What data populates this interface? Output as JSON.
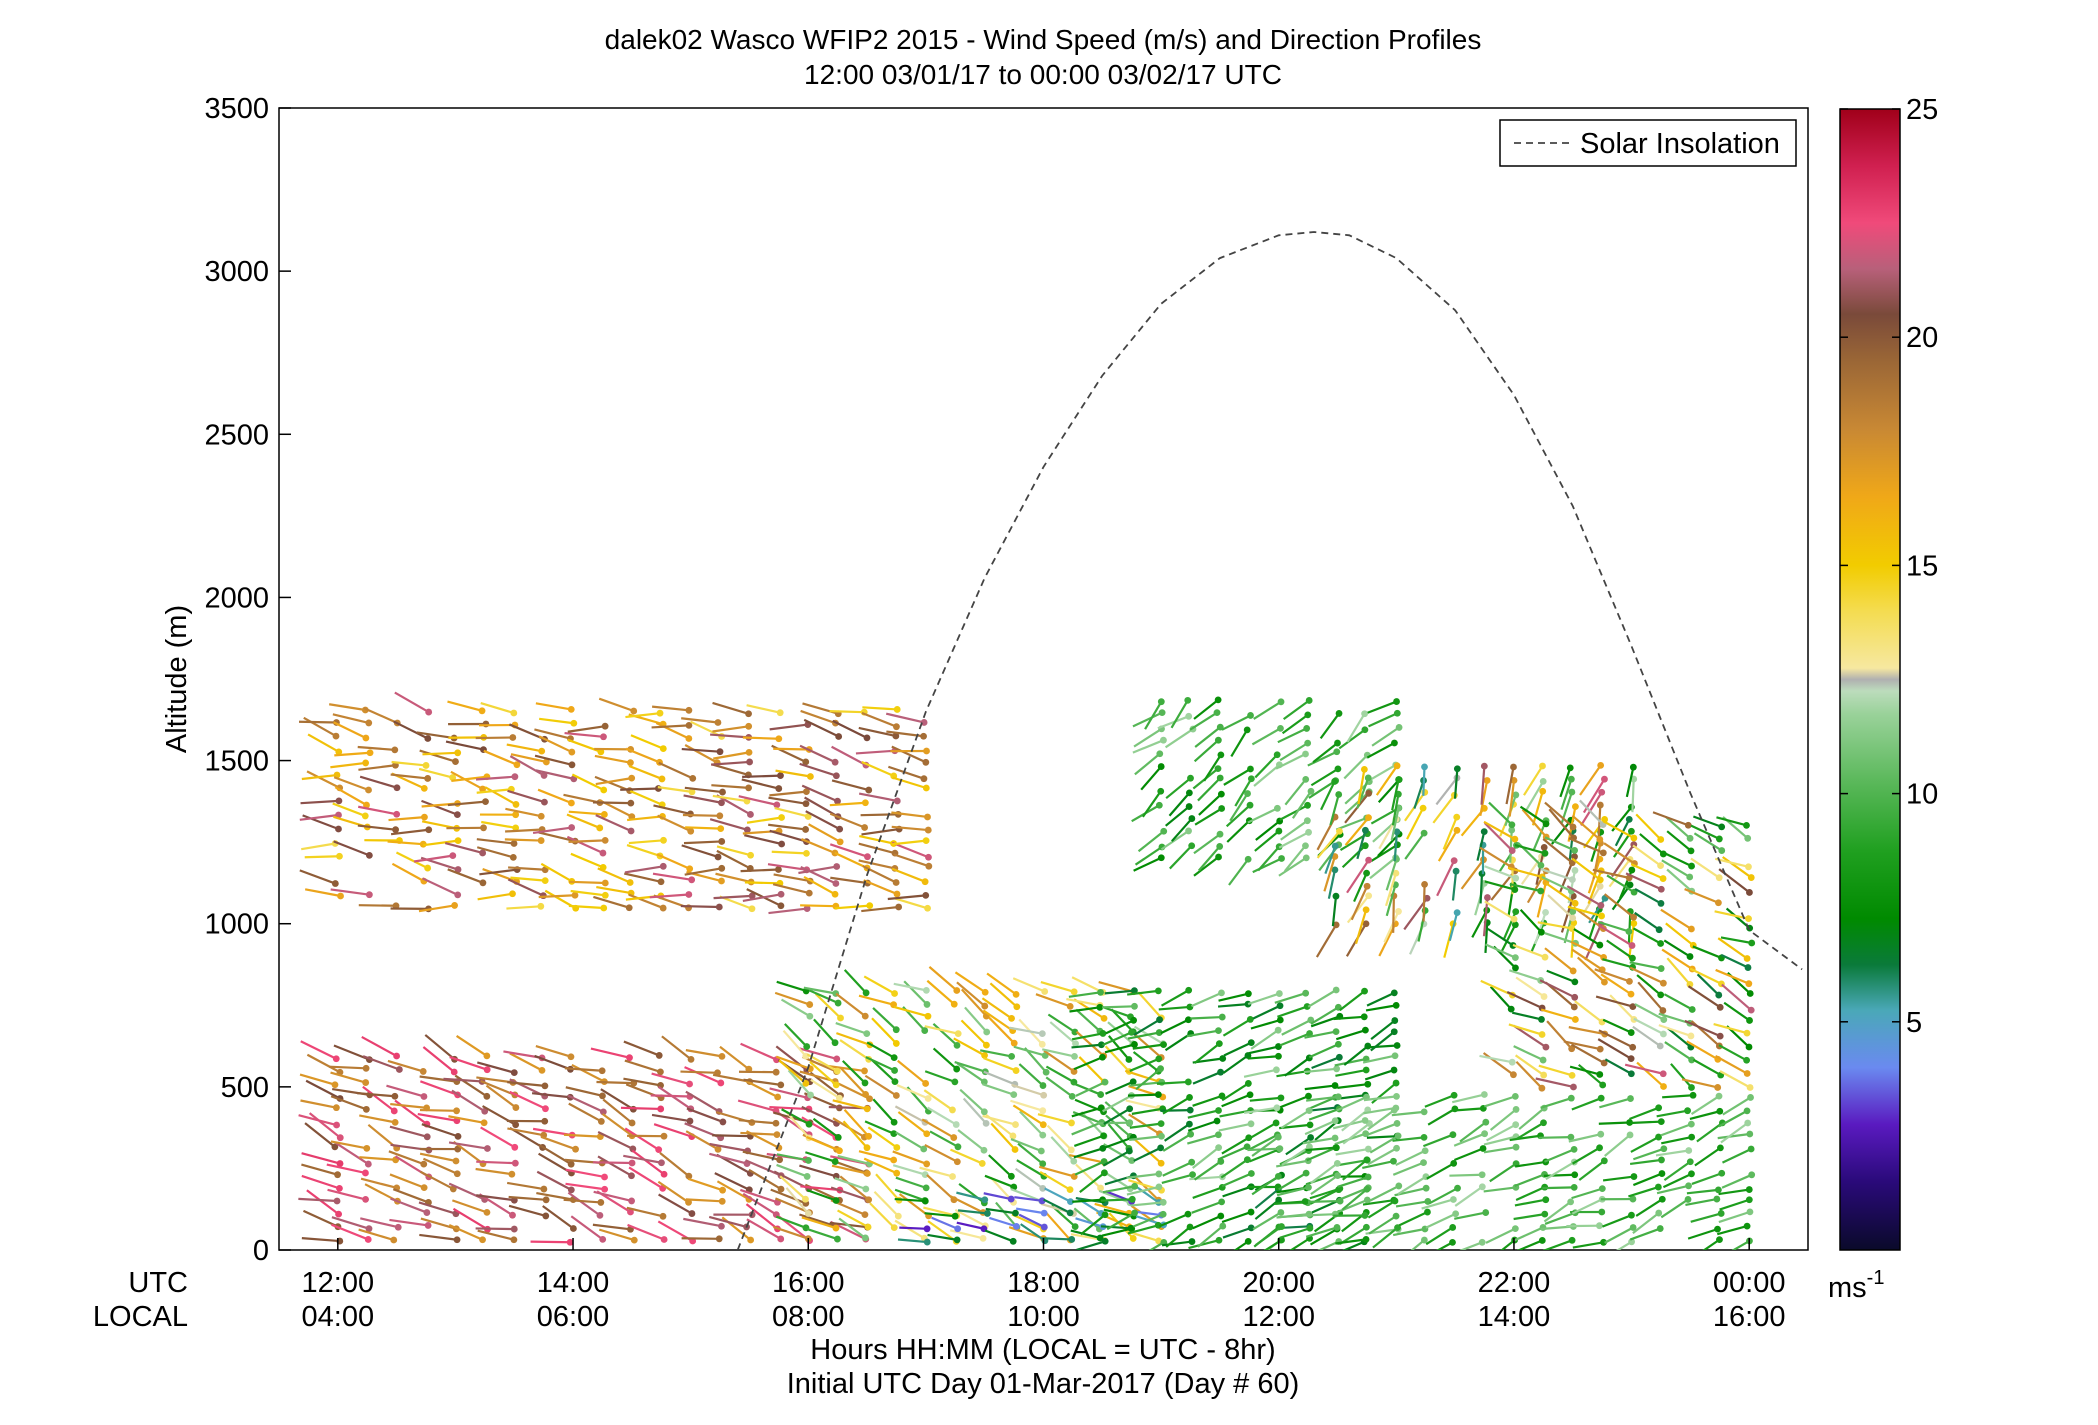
{
  "chart_data": {
    "type": "scatter",
    "title": "dalek02 Wasco WFIP2 2015 - Wind Speed (m/s) and Direction Profiles",
    "subtitle": "12:00 03/01/17 to 00:00 03/02/17  UTC",
    "ylabel": "Altitude (m)",
    "xlabel": "Hours HH:MM  (LOCAL = UTC - 8hr)",
    "footnote": "Initial UTC Day 01-Mar-2017 (Day # 60)",
    "row_labels": {
      "utc": "UTC",
      "local": "LOCAL"
    },
    "x_ticks_utc": [
      "12:00",
      "14:00",
      "16:00",
      "18:00",
      "20:00",
      "22:00",
      "00:00"
    ],
    "x_ticks_local": [
      "04:00",
      "06:00",
      "08:00",
      "10:00",
      "12:00",
      "14:00",
      "16:00"
    ],
    "x_tick_hours": [
      12,
      14,
      16,
      18,
      20,
      22,
      24
    ],
    "xlim_hours": [
      11.5,
      24.5
    ],
    "ylim": [
      0,
      3500
    ],
    "y_ticks": [
      0,
      500,
      1000,
      1500,
      2000,
      2500,
      3000,
      3500
    ],
    "grid": false,
    "legend": {
      "entries": [
        "Solar Insolation"
      ],
      "position": "top-right"
    },
    "colorbar": {
      "ticks": [
        5,
        10,
        15,
        20,
        25
      ],
      "range": [
        0,
        25
      ],
      "unit_base": "ms",
      "unit_exp": "-1"
    },
    "solar_insolation": {
      "name": "Solar Insolation",
      "x_hours": [
        15.4,
        16.0,
        16.5,
        17.0,
        17.5,
        18.0,
        18.5,
        19.0,
        19.5,
        20.0,
        20.3,
        20.6,
        21.0,
        21.5,
        22.0,
        22.5,
        23.0,
        23.5,
        24.0,
        24.45
      ],
      "y": [
        0,
        560,
        1150,
        1650,
        2060,
        2400,
        2680,
        2900,
        3040,
        3110,
        3120,
        3110,
        3040,
        2880,
        2620,
        2280,
        1850,
        1400,
        980,
        860
      ]
    },
    "wind_barbs": {
      "description_fields": [
        "hour",
        "altitude_m",
        "speed_ms"
      ],
      "regimes": [
        {
          "hour_range": [
            12.0,
            17.0
          ],
          "alt_range": [
            1050,
            1650
          ],
          "speed_range": [
            14,
            22
          ],
          "dir_deg": 280
        },
        {
          "hour_range": [
            12.0,
            16.5
          ],
          "alt_range": [
            30,
            620
          ],
          "speed_range": [
            17,
            23
          ],
          "dir_deg": 290
        },
        {
          "hour_range": [
            16.0,
            19.0
          ],
          "alt_range": [
            30,
            800
          ],
          "speed_range": [
            8,
            18
          ],
          "dir_deg": 300
        },
        {
          "hour_range": [
            17.0,
            19.0
          ],
          "alt_range": [
            30,
            150
          ],
          "speed_range": [
            3,
            8
          ],
          "dir_deg": 290
        },
        {
          "hour_range": [
            18.5,
            21.0
          ],
          "alt_range": [
            30,
            800
          ],
          "speed_range": [
            6,
            12
          ],
          "dir_deg": 250
        },
        {
          "hour_range": [
            19.0,
            21.0
          ],
          "alt_range": [
            1200,
            1700
          ],
          "speed_range": [
            7,
            12
          ],
          "dir_deg": 230
        },
        {
          "hour_range": [
            20.5,
            23.0
          ],
          "alt_range": [
            1000,
            1500
          ],
          "speed_range": [
            5,
            22
          ],
          "dir_deg": 200
        },
        {
          "hour_range": [
            20.0,
            24.0
          ],
          "alt_range": [
            30,
            500
          ],
          "speed_range": [
            8,
            12
          ],
          "dir_deg": 250
        },
        {
          "hour_range": [
            22.0,
            24.0
          ],
          "alt_range": [
            500,
            1300
          ],
          "speed_range": [
            6,
            22
          ],
          "dir_deg": 300
        }
      ]
    }
  }
}
